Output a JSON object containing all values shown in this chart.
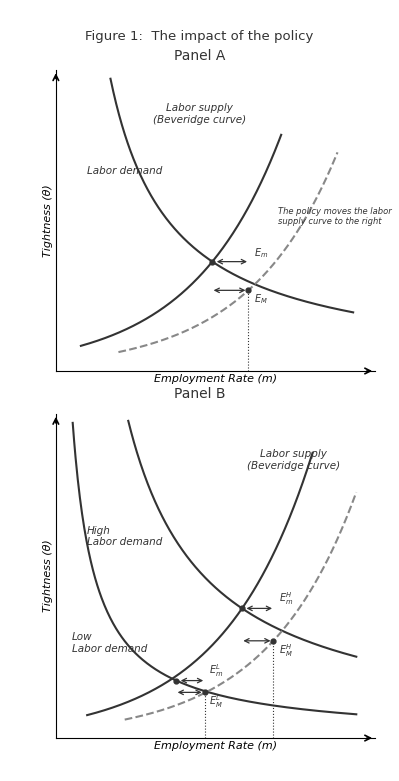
{
  "fig_title": "Figure 1:  The impact of the policy",
  "panel_a_title": "Panel A",
  "panel_b_title": "Panel B",
  "xlabel": "Employment Rate (m)",
  "ylabel": "Tightness (θ)",
  "color_solid": "#333333",
  "color_dashed": "#888888",
  "background": "#ffffff",
  "panel_a": {
    "demand_label": "Labor demand",
    "supply_label": "Labor supply\n(Beveridge curve)",
    "policy_note": "The policy moves the labor\nsupply curve to the right",
    "xi_solid": 0.5,
    "yi_solid": 0.4,
    "xi_dashed": 0.615,
    "yi_dashed": 0.295
  },
  "panel_b": {
    "high_demand_label": "High\nLabor demand",
    "low_demand_label": "Low\nLabor demand",
    "supply_label": "Labor supply\n(Beveridge curve)",
    "xiH_s": 0.595,
    "yiH_s": 0.44,
    "xiH_d": 0.695,
    "yiH_d": 0.33,
    "xiL_s": 0.385,
    "yiL_s": 0.195,
    "xiL_d": 0.475,
    "yiL_d": 0.155
  }
}
